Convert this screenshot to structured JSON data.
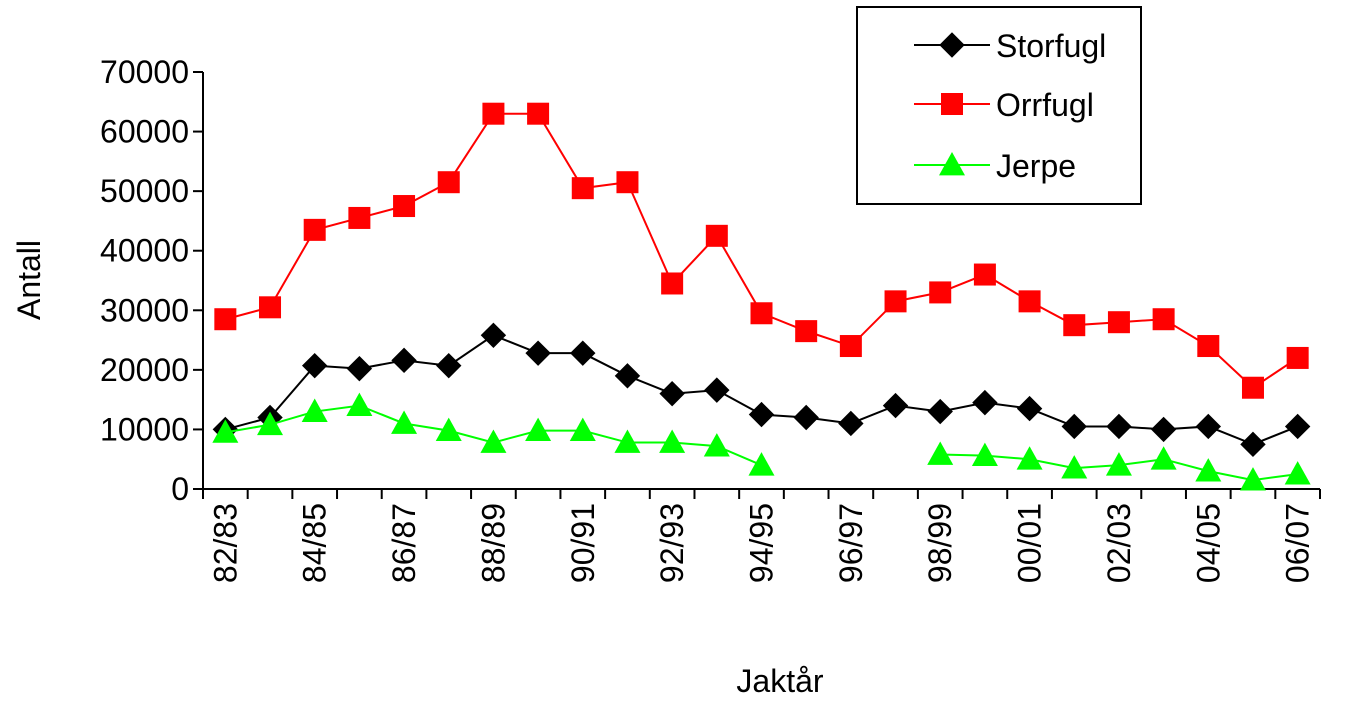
{
  "chart_data": {
    "type": "line",
    "xlabel": "Jaktår",
    "ylabel": "Antall",
    "ylim": [
      0,
      70000
    ],
    "yticks": [
      "0",
      "10000",
      "20000",
      "30000",
      "40000",
      "50000",
      "60000",
      "70000"
    ],
    "categories": [
      "82/83",
      "83/84",
      "84/85",
      "85/86",
      "86/87",
      "87/88",
      "88/89",
      "89/90",
      "90/91",
      "91/92",
      "92/93",
      "93/94",
      "94/95",
      "95/96",
      "96/97",
      "97/98",
      "98/99",
      "99/00",
      "00/01",
      "01/02",
      "02/03",
      "03/04",
      "04/05",
      "05/06",
      "06/07"
    ],
    "x_tick_labels": [
      "82/83",
      "",
      "84/85",
      "",
      "86/87",
      "",
      "88/89",
      "",
      "90/91",
      "",
      "92/93",
      "",
      "94/95",
      "",
      "96/97",
      "",
      "98/99",
      "",
      "00/01",
      "",
      "02/03",
      "",
      "04/05",
      "",
      "06/07"
    ],
    "grid": false,
    "legend_position": "top-right",
    "series": [
      {
        "name": "Storfugl",
        "color": "#000000",
        "marker": "diamond",
        "values": [
          10000,
          12000,
          20700,
          20200,
          21600,
          20700,
          25800,
          22800,
          22800,
          19000,
          16000,
          16600,
          12500,
          12000,
          11000,
          14000,
          13000,
          14500,
          13500,
          10500,
          10500,
          10000,
          10500,
          7500,
          10500
        ]
      },
      {
        "name": "Orrfugl",
        "color": "#ff0000",
        "marker": "square",
        "values": [
          28500,
          30500,
          43500,
          45500,
          47500,
          51500,
          63000,
          63000,
          50500,
          51500,
          34500,
          42500,
          29500,
          26500,
          24000,
          31500,
          33000,
          36000,
          31500,
          27500,
          28000,
          28500,
          24000,
          17000,
          22000
        ]
      },
      {
        "name": "Jerpe",
        "color": "#00ff00",
        "marker": "triangle",
        "values": [
          9500,
          10800,
          13000,
          14000,
          11000,
          9800,
          7800,
          9800,
          9800,
          7800,
          7800,
          7200,
          4000,
          null,
          null,
          null,
          5800,
          5600,
          5000,
          3500,
          4000,
          5000,
          3000,
          1500,
          2500
        ]
      }
    ]
  }
}
